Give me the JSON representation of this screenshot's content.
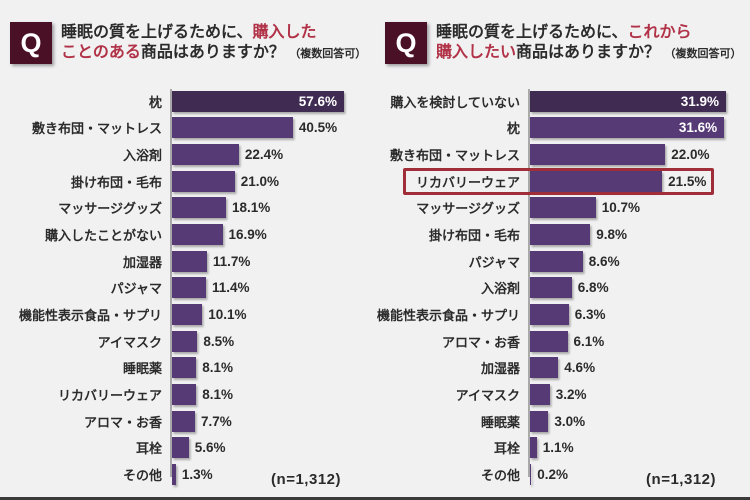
{
  "style": {
    "background": "#f1f1f2",
    "bar_color": "#553a76",
    "bar_dark_color": "#402b53",
    "accent_red": "#b13247",
    "highlight_border": "#a02e39",
    "badge_bg": "#4a1026",
    "text_color": "#2b2b2b",
    "axis_color": "#a9a9a9"
  },
  "badge_letter": "Q",
  "charts": [
    {
      "question": {
        "prefix": "睡眠の質を上げるために、",
        "em1": "購入した",
        "em2": "ことのある",
        "suffix": "商品はありますか？",
        "note": "（複数回答可）"
      },
      "n_label": "(n=1,312)"
    },
    {
      "question": {
        "prefix": "睡眠の質を上げるために、",
        "em1": "これから",
        "em2": "購入したい",
        "suffix": "商品はありますか？",
        "note": "（複数回答可）"
      },
      "n_label": "(n=1,312)"
    }
  ],
  "chart_data": [
    {
      "type": "bar",
      "orientation": "horizontal",
      "title": "睡眠の質を上げるために、購入したことのある商品はありますか？（複数回答可）",
      "unit": "%",
      "n_label": "(n=1,312)",
      "xlim": [
        0,
        60
      ],
      "categories": [
        "枕",
        "敷き布団・マットレス",
        "入浴剤",
        "掛け布団・毛布",
        "マッサージグッズ",
        "購入したことがない",
        "加湿器",
        "パジャマ",
        "機能性表示食品・サプリ",
        "アイマスク",
        "睡眠薬",
        "リカバリーウェア",
        "アロマ・お香",
        "耳栓",
        "その他"
      ],
      "values": [
        57.6,
        40.5,
        22.4,
        21.0,
        18.1,
        16.9,
        11.7,
        11.4,
        10.1,
        8.5,
        8.1,
        8.1,
        7.7,
        5.6,
        1.3
      ],
      "dark_index": 0,
      "value_inside_indices": [
        0
      ],
      "highlight_index": null
    },
    {
      "type": "bar",
      "orientation": "horizontal",
      "title": "睡眠の質を上げるために、これから購入したい商品はありますか？（複数回答可）",
      "unit": "%",
      "n_label": "(n=1,312)",
      "xlim": [
        0,
        35
      ],
      "categories": [
        "購入を検討していない",
        "枕",
        "敷き布団・マットレス",
        "リカバリーウェア",
        "マッサージグッズ",
        "掛け布団・毛布",
        "パジャマ",
        "入浴剤",
        "機能性表示食品・サプリ",
        "アロマ・お香",
        "加湿器",
        "アイマスク",
        "睡眠薬",
        "耳栓",
        "その他"
      ],
      "values": [
        31.9,
        31.6,
        22.0,
        21.5,
        10.7,
        9.8,
        8.6,
        6.8,
        6.3,
        6.1,
        4.6,
        3.2,
        3.0,
        1.1,
        0.2
      ],
      "dark_index": 0,
      "value_inside_indices": [
        0,
        1
      ],
      "highlight_index": 3
    }
  ]
}
